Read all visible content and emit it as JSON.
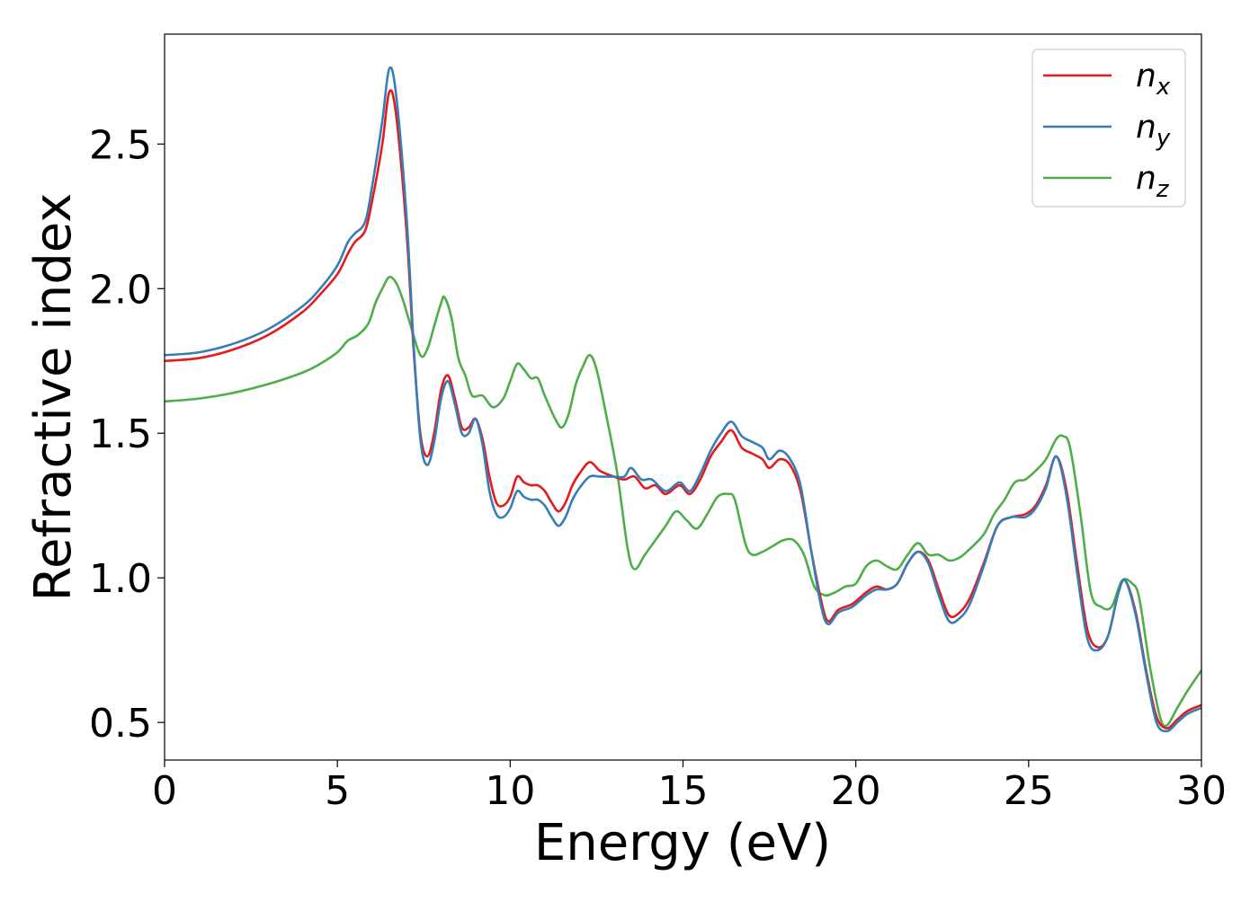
{
  "chart_data": {
    "type": "line",
    "title": "",
    "xlabel": "Energy (eV)",
    "ylabel": "Refractive index",
    "xlim": [
      0,
      30
    ],
    "ylim": [
      0.37,
      2.88
    ],
    "xticks": [
      0,
      5,
      10,
      15,
      20,
      25,
      30
    ],
    "xtick_labels": [
      "0",
      "5",
      "10",
      "15",
      "20",
      "25",
      "30"
    ],
    "yticks": [
      0.5,
      1.0,
      1.5,
      2.0,
      2.5
    ],
    "ytick_labels": [
      "0.5",
      "1.0",
      "1.5",
      "2.0",
      "2.5"
    ],
    "grid": false,
    "legend_position": "top-right",
    "series": [
      {
        "name": "n_x",
        "label_main": "n",
        "label_sub": "x",
        "color": "#e41a1c",
        "points": [
          [
            0,
            1.75
          ],
          [
            1,
            1.76
          ],
          [
            2,
            1.79
          ],
          [
            3,
            1.84
          ],
          [
            4,
            1.92
          ],
          [
            4.5,
            1.98
          ],
          [
            5,
            2.05
          ],
          [
            5.3,
            2.12
          ],
          [
            5.5,
            2.16
          ],
          [
            5.8,
            2.2
          ],
          [
            6.0,
            2.3
          ],
          [
            6.3,
            2.5
          ],
          [
            6.5,
            2.68
          ],
          [
            6.7,
            2.6
          ],
          [
            7.0,
            2.2
          ],
          [
            7.2,
            1.8
          ],
          [
            7.4,
            1.5
          ],
          [
            7.6,
            1.42
          ],
          [
            7.8,
            1.5
          ],
          [
            8.0,
            1.65
          ],
          [
            8.2,
            1.7
          ],
          [
            8.4,
            1.62
          ],
          [
            8.6,
            1.52
          ],
          [
            8.8,
            1.52
          ],
          [
            9.0,
            1.55
          ],
          [
            9.2,
            1.48
          ],
          [
            9.4,
            1.35
          ],
          [
            9.6,
            1.26
          ],
          [
            9.8,
            1.25
          ],
          [
            10.0,
            1.28
          ],
          [
            10.2,
            1.35
          ],
          [
            10.4,
            1.33
          ],
          [
            10.6,
            1.32
          ],
          [
            10.8,
            1.32
          ],
          [
            11.0,
            1.3
          ],
          [
            11.2,
            1.26
          ],
          [
            11.4,
            1.23
          ],
          [
            11.6,
            1.26
          ],
          [
            11.8,
            1.32
          ],
          [
            12.0,
            1.36
          ],
          [
            12.3,
            1.4
          ],
          [
            12.6,
            1.37
          ],
          [
            13.0,
            1.35
          ],
          [
            13.3,
            1.34
          ],
          [
            13.6,
            1.35
          ],
          [
            13.9,
            1.31
          ],
          [
            14.2,
            1.32
          ],
          [
            14.5,
            1.29
          ],
          [
            14.9,
            1.32
          ],
          [
            15.2,
            1.29
          ],
          [
            15.5,
            1.34
          ],
          [
            15.8,
            1.42
          ],
          [
            16.1,
            1.47
          ],
          [
            16.4,
            1.51
          ],
          [
            16.7,
            1.45
          ],
          [
            17.0,
            1.43
          ],
          [
            17.3,
            1.41
          ],
          [
            17.5,
            1.38
          ],
          [
            17.8,
            1.41
          ],
          [
            18.1,
            1.39
          ],
          [
            18.4,
            1.3
          ],
          [
            18.7,
            1.1
          ],
          [
            19.0,
            0.92
          ],
          [
            19.2,
            0.85
          ],
          [
            19.5,
            0.89
          ],
          [
            19.9,
            0.91
          ],
          [
            20.3,
            0.95
          ],
          [
            20.6,
            0.97
          ],
          [
            20.9,
            0.96
          ],
          [
            21.2,
            0.98
          ],
          [
            21.5,
            1.05
          ],
          [
            21.8,
            1.09
          ],
          [
            22.1,
            1.06
          ],
          [
            22.4,
            0.96
          ],
          [
            22.7,
            0.87
          ],
          [
            23.0,
            0.88
          ],
          [
            23.3,
            0.93
          ],
          [
            23.7,
            1.05
          ],
          [
            24.1,
            1.18
          ],
          [
            24.5,
            1.21
          ],
          [
            24.9,
            1.22
          ],
          [
            25.2,
            1.25
          ],
          [
            25.5,
            1.32
          ],
          [
            25.8,
            1.42
          ],
          [
            26.1,
            1.3
          ],
          [
            26.4,
            1.05
          ],
          [
            26.7,
            0.82
          ],
          [
            27.0,
            0.76
          ],
          [
            27.3,
            0.8
          ],
          [
            27.6,
            0.95
          ],
          [
            27.8,
            0.99
          ],
          [
            28.1,
            0.88
          ],
          [
            28.4,
            0.68
          ],
          [
            28.7,
            0.52
          ],
          [
            29.0,
            0.48
          ],
          [
            29.3,
            0.51
          ],
          [
            29.6,
            0.54
          ],
          [
            30.0,
            0.56
          ]
        ]
      },
      {
        "name": "n_y",
        "label_main": "n",
        "label_sub": "y",
        "color": "#377eb8",
        "points": [
          [
            0,
            1.77
          ],
          [
            1,
            1.78
          ],
          [
            2,
            1.81
          ],
          [
            3,
            1.86
          ],
          [
            4,
            1.94
          ],
          [
            4.5,
            2.0
          ],
          [
            5,
            2.08
          ],
          [
            5.3,
            2.16
          ],
          [
            5.5,
            2.19
          ],
          [
            5.8,
            2.23
          ],
          [
            6.0,
            2.35
          ],
          [
            6.3,
            2.58
          ],
          [
            6.5,
            2.76
          ],
          [
            6.7,
            2.67
          ],
          [
            7.0,
            2.25
          ],
          [
            7.2,
            1.82
          ],
          [
            7.4,
            1.48
          ],
          [
            7.6,
            1.39
          ],
          [
            7.8,
            1.47
          ],
          [
            8.0,
            1.62
          ],
          [
            8.2,
            1.68
          ],
          [
            8.4,
            1.6
          ],
          [
            8.6,
            1.5
          ],
          [
            8.8,
            1.5
          ],
          [
            9.0,
            1.55
          ],
          [
            9.2,
            1.46
          ],
          [
            9.4,
            1.3
          ],
          [
            9.6,
            1.22
          ],
          [
            9.8,
            1.21
          ],
          [
            10.0,
            1.24
          ],
          [
            10.2,
            1.3
          ],
          [
            10.4,
            1.28
          ],
          [
            10.6,
            1.27
          ],
          [
            10.8,
            1.27
          ],
          [
            11.0,
            1.25
          ],
          [
            11.2,
            1.21
          ],
          [
            11.4,
            1.18
          ],
          [
            11.6,
            1.21
          ],
          [
            11.8,
            1.27
          ],
          [
            12.0,
            1.31
          ],
          [
            12.3,
            1.35
          ],
          [
            12.6,
            1.35
          ],
          [
            13.0,
            1.35
          ],
          [
            13.3,
            1.35
          ],
          [
            13.5,
            1.38
          ],
          [
            13.8,
            1.34
          ],
          [
            14.1,
            1.34
          ],
          [
            14.5,
            1.3
          ],
          [
            14.9,
            1.33
          ],
          [
            15.2,
            1.3
          ],
          [
            15.5,
            1.36
          ],
          [
            15.8,
            1.44
          ],
          [
            16.1,
            1.5
          ],
          [
            16.4,
            1.54
          ],
          [
            16.7,
            1.49
          ],
          [
            17.0,
            1.47
          ],
          [
            17.3,
            1.45
          ],
          [
            17.5,
            1.41
          ],
          [
            17.8,
            1.44
          ],
          [
            18.1,
            1.41
          ],
          [
            18.4,
            1.32
          ],
          [
            18.7,
            1.1
          ],
          [
            19.0,
            0.9
          ],
          [
            19.2,
            0.84
          ],
          [
            19.5,
            0.88
          ],
          [
            19.9,
            0.9
          ],
          [
            20.3,
            0.94
          ],
          [
            20.6,
            0.96
          ],
          [
            20.9,
            0.96
          ],
          [
            21.2,
            0.98
          ],
          [
            21.5,
            1.05
          ],
          [
            21.8,
            1.09
          ],
          [
            22.1,
            1.05
          ],
          [
            22.4,
            0.94
          ],
          [
            22.7,
            0.85
          ],
          [
            23.0,
            0.86
          ],
          [
            23.3,
            0.91
          ],
          [
            23.7,
            1.04
          ],
          [
            24.1,
            1.18
          ],
          [
            24.5,
            1.21
          ],
          [
            24.9,
            1.21
          ],
          [
            25.2,
            1.24
          ],
          [
            25.5,
            1.31
          ],
          [
            25.8,
            1.42
          ],
          [
            26.1,
            1.28
          ],
          [
            26.4,
            1.02
          ],
          [
            26.7,
            0.79
          ],
          [
            27.0,
            0.75
          ],
          [
            27.3,
            0.8
          ],
          [
            27.6,
            0.95
          ],
          [
            27.8,
            0.99
          ],
          [
            28.1,
            0.87
          ],
          [
            28.4,
            0.67
          ],
          [
            28.7,
            0.5
          ],
          [
            29.0,
            0.47
          ],
          [
            29.3,
            0.5
          ],
          [
            29.6,
            0.53
          ],
          [
            30.0,
            0.55
          ]
        ]
      },
      {
        "name": "n_z",
        "label_main": "n",
        "label_sub": "z",
        "color": "#4daf4a",
        "points": [
          [
            0,
            1.61
          ],
          [
            1,
            1.62
          ],
          [
            2,
            1.64
          ],
          [
            3,
            1.67
          ],
          [
            4,
            1.71
          ],
          [
            4.5,
            1.74
          ],
          [
            5,
            1.78
          ],
          [
            5.3,
            1.82
          ],
          [
            5.6,
            1.84
          ],
          [
            5.9,
            1.88
          ],
          [
            6.1,
            1.95
          ],
          [
            6.3,
            2.0
          ],
          [
            6.5,
            2.04
          ],
          [
            6.7,
            2.02
          ],
          [
            6.9,
            1.96
          ],
          [
            7.1,
            1.88
          ],
          [
            7.4,
            1.77
          ],
          [
            7.6,
            1.79
          ],
          [
            7.8,
            1.87
          ],
          [
            8.0,
            1.95
          ],
          [
            8.1,
            1.97
          ],
          [
            8.3,
            1.9
          ],
          [
            8.5,
            1.76
          ],
          [
            8.7,
            1.7
          ],
          [
            8.9,
            1.63
          ],
          [
            9.2,
            1.63
          ],
          [
            9.5,
            1.59
          ],
          [
            9.8,
            1.62
          ],
          [
            10.0,
            1.68
          ],
          [
            10.2,
            1.74
          ],
          [
            10.4,
            1.72
          ],
          [
            10.6,
            1.69
          ],
          [
            10.8,
            1.69
          ],
          [
            11.0,
            1.63
          ],
          [
            11.3,
            1.55
          ],
          [
            11.5,
            1.52
          ],
          [
            11.7,
            1.57
          ],
          [
            11.9,
            1.67
          ],
          [
            12.1,
            1.73
          ],
          [
            12.3,
            1.77
          ],
          [
            12.5,
            1.72
          ],
          [
            12.8,
            1.55
          ],
          [
            13.1,
            1.36
          ],
          [
            13.4,
            1.1
          ],
          [
            13.6,
            1.03
          ],
          [
            13.9,
            1.08
          ],
          [
            14.2,
            1.13
          ],
          [
            14.5,
            1.18
          ],
          [
            14.8,
            1.23
          ],
          [
            15.1,
            1.2
          ],
          [
            15.4,
            1.17
          ],
          [
            15.7,
            1.22
          ],
          [
            16.0,
            1.28
          ],
          [
            16.3,
            1.29
          ],
          [
            16.5,
            1.27
          ],
          [
            16.8,
            1.12
          ],
          [
            17.0,
            1.08
          ],
          [
            17.3,
            1.09
          ],
          [
            17.6,
            1.11
          ],
          [
            17.9,
            1.13
          ],
          [
            18.2,
            1.13
          ],
          [
            18.5,
            1.08
          ],
          [
            18.8,
            0.97
          ],
          [
            19.1,
            0.94
          ],
          [
            19.4,
            0.95
          ],
          [
            19.7,
            0.97
          ],
          [
            20.0,
            0.98
          ],
          [
            20.3,
            1.04
          ],
          [
            20.6,
            1.06
          ],
          [
            20.9,
            1.04
          ],
          [
            21.2,
            1.03
          ],
          [
            21.5,
            1.08
          ],
          [
            21.8,
            1.12
          ],
          [
            22.1,
            1.08
          ],
          [
            22.4,
            1.08
          ],
          [
            22.7,
            1.06
          ],
          [
            23.0,
            1.07
          ],
          [
            23.3,
            1.1
          ],
          [
            23.7,
            1.15
          ],
          [
            24.0,
            1.22
          ],
          [
            24.3,
            1.27
          ],
          [
            24.6,
            1.33
          ],
          [
            24.9,
            1.34
          ],
          [
            25.2,
            1.37
          ],
          [
            25.5,
            1.41
          ],
          [
            25.8,
            1.48
          ],
          [
            26.0,
            1.49
          ],
          [
            26.2,
            1.45
          ],
          [
            26.5,
            1.22
          ],
          [
            26.8,
            0.95
          ],
          [
            27.1,
            0.9
          ],
          [
            27.4,
            0.9
          ],
          [
            27.7,
            0.99
          ],
          [
            28.0,
            0.98
          ],
          [
            28.2,
            0.93
          ],
          [
            28.5,
            0.7
          ],
          [
            28.8,
            0.52
          ],
          [
            29.0,
            0.49
          ],
          [
            29.3,
            0.55
          ],
          [
            29.6,
            0.61
          ],
          [
            30.0,
            0.68
          ]
        ]
      }
    ]
  }
}
